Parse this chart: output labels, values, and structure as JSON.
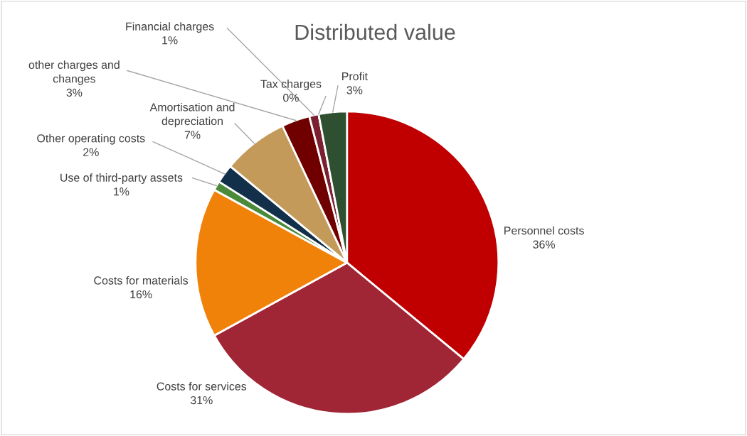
{
  "chart_data": {
    "type": "pie",
    "title": "Distributed value",
    "categories": [
      "Personnel costs",
      "Costs for services",
      "Costs for materials",
      "Use of third-party assets",
      "Other operating costs",
      "Amortisation and\ndepreciation",
      "other charges and\nchanges",
      "Financial charges",
      "Tax charges",
      "Profit"
    ],
    "values": [
      36,
      31,
      16,
      1,
      2,
      7,
      3,
      1,
      0,
      3
    ],
    "value_labels": [
      "36%",
      "31%",
      "16%",
      "1%",
      "2%",
      "7%",
      "3%",
      "1%",
      "0%",
      "3%"
    ],
    "colors": [
      "#c00000",
      "#a02535",
      "#f0820a",
      "#4a8a3a",
      "#13304a",
      "#c49a5a",
      "#700000",
      "#7a2030",
      "#b0a0a0",
      "#2e5030"
    ],
    "legend": false
  }
}
